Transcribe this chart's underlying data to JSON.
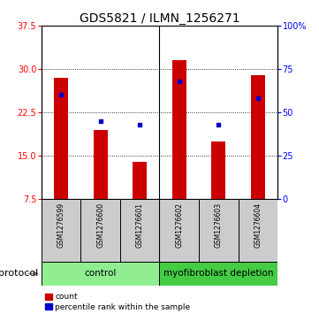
{
  "title": "GDS5821 / ILMN_1256271",
  "samples": [
    "GSM1276599",
    "GSM1276600",
    "GSM1276601",
    "GSM1276602",
    "GSM1276603",
    "GSM1276604"
  ],
  "counts": [
    28.5,
    19.5,
    14.0,
    31.5,
    17.5,
    29.0
  ],
  "percentiles": [
    60.0,
    45.0,
    43.0,
    68.0,
    43.0,
    58.0
  ],
  "ylim_left": [
    7.5,
    37.5
  ],
  "ylim_right": [
    0,
    100
  ],
  "yticks_left": [
    7.5,
    15.0,
    22.5,
    30.0,
    37.5
  ],
  "yticks_right": [
    0,
    25,
    50,
    75,
    100
  ],
  "bar_color": "#cc0000",
  "dot_color": "#0000cc",
  "bar_bottom": 7.5,
  "group_color_control": "#90ee90",
  "group_color_myo": "#44cc44",
  "sample_box_color": "#cccccc",
  "title_fontsize": 10,
  "tick_fontsize": 7,
  "sample_fontsize": 5.5,
  "legend_fontsize": 6.5,
  "protocol_fontsize": 7.5,
  "protocol_label_fontsize": 8
}
